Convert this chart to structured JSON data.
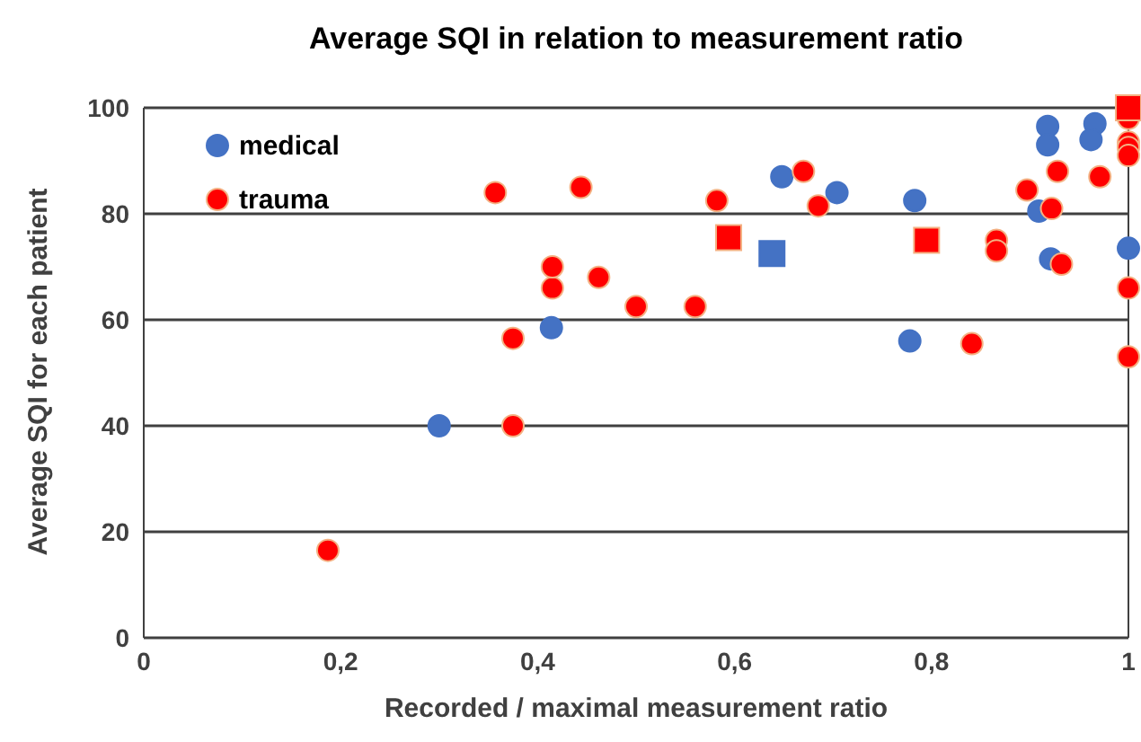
{
  "chart_data": {
    "type": "scatter",
    "title": "Average SQI in relation to measurement ratio",
    "xlabel": "Recorded / maximal measurement ratio",
    "ylabel": "Average SQI for each patient",
    "xlim": [
      0,
      1
    ],
    "xticks": [
      0,
      {
        "value": 0.2,
        "label": "0,2"
      },
      {
        "value": 0.4,
        "label": "0,4"
      },
      {
        "value": 0.6,
        "label": "0,6"
      },
      {
        "value": 0.8,
        "label": "0,8"
      },
      1
    ],
    "ylim": [
      0,
      100
    ],
    "yticks": [
      0,
      20,
      40,
      60,
      80,
      100
    ],
    "grid": "y",
    "legend": "top left",
    "series": [
      {
        "name": "medical",
        "color": "#4472c4",
        "marker": "circle",
        "x": [
          0.3,
          0.414,
          0.648,
          0.704,
          0.783,
          0.778,
          0.918,
          0.918,
          0.966,
          0.962,
          0.909,
          0.921,
          1.0
        ],
        "values": [
          40,
          58.5,
          87,
          84,
          82.5,
          56,
          96.5,
          93,
          97,
          94,
          80.5,
          71.5,
          73.5
        ]
      },
      {
        "name": "trauma",
        "color": "#ff0000",
        "marker": "circle",
        "x": [
          0.187,
          0.375,
          0.375,
          0.415,
          0.415,
          0.462,
          0.5,
          0.357,
          0.444,
          0.67,
          0.582,
          0.685,
          0.56,
          0.866,
          0.866,
          0.897,
          0.928,
          0.922,
          0.971,
          0.932,
          0.841,
          1.0,
          1.0,
          1.0,
          1.0,
          1.0,
          1.0
        ],
        "values": [
          16.5,
          40,
          56.5,
          66,
          70,
          68,
          62.5,
          84,
          85,
          88,
          82.5,
          81.5,
          62.5,
          75,
          73,
          84.5,
          88,
          81,
          87,
          70.5,
          55.5,
          66,
          53,
          98,
          93.5,
          92.5,
          91
        ]
      },
      {
        "color": "#4472c4",
        "marker": "square",
        "x": [
          0.638
        ],
        "values": [
          72.5
        ]
      },
      {
        "color": "#ff0000",
        "marker": "square",
        "x": [
          0.594,
          0.795,
          1.0
        ],
        "values": [
          75.5,
          75,
          100
        ]
      }
    ]
  }
}
